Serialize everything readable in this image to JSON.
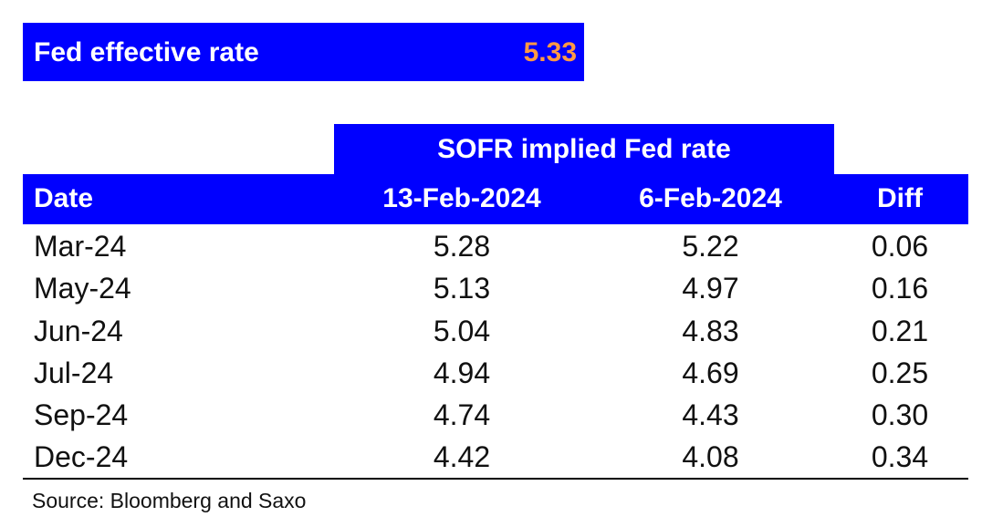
{
  "fed_box": {
    "label": "Fed effective rate",
    "value": "5.33"
  },
  "group_header": "SOFR implied Fed rate",
  "columns": [
    "Date",
    "13-Feb-2024",
    "6-Feb-2024",
    "Diff"
  ],
  "rows": [
    [
      "Mar-24",
      "5.28",
      "5.22",
      "0.06"
    ],
    [
      "May-24",
      "5.13",
      "4.97",
      "0.16"
    ],
    [
      "Jun-24",
      "5.04",
      "4.83",
      "0.21"
    ],
    [
      "Jul-24",
      "4.94",
      "4.69",
      "0.25"
    ],
    [
      "Sep-24",
      "4.74",
      "4.43",
      "0.30"
    ],
    [
      "Dec-24",
      "4.42",
      "4.08",
      "0.34"
    ]
  ],
  "source": "Source: Bloomberg and Saxo",
  "colors": {
    "header_bg": "#0000ff",
    "header_text": "#ffffff",
    "fed_value": "#ff9944"
  },
  "chart_data": {
    "type": "table",
    "title": "",
    "group_header": "SOFR implied Fed rate",
    "columns": [
      "Date",
      "13-Feb-2024",
      "6-Feb-2024",
      "Diff"
    ],
    "rows": [
      [
        "Mar-24",
        5.28,
        5.22,
        0.06
      ],
      [
        "May-24",
        5.13,
        4.97,
        0.16
      ],
      [
        "Jun-24",
        5.04,
        4.83,
        0.21
      ],
      [
        "Jul-24",
        4.94,
        4.69,
        0.25
      ],
      [
        "Sep-24",
        4.74,
        4.43,
        0.3
      ],
      [
        "Dec-24",
        4.42,
        4.08,
        0.34
      ]
    ]
  }
}
